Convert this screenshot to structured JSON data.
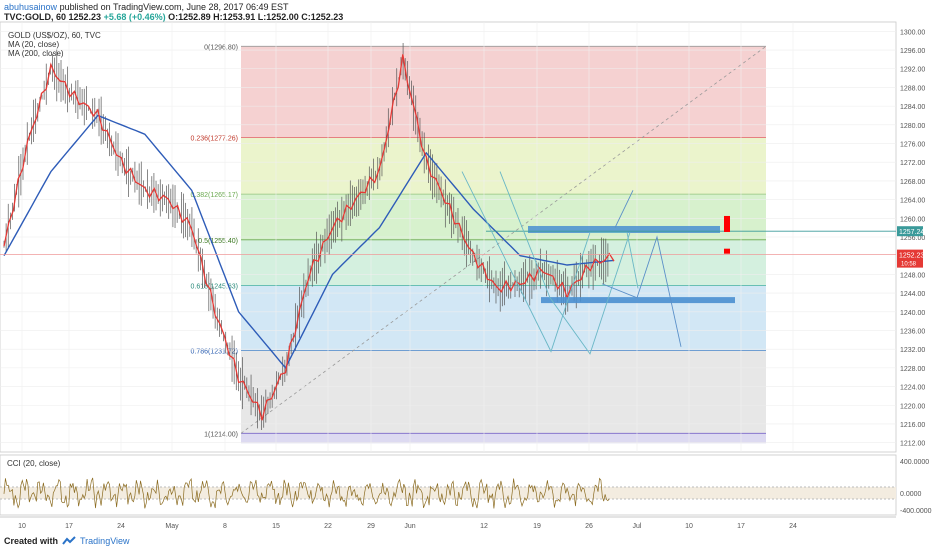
{
  "header": {
    "author": "abuhusainow",
    "published": "published on TradingView.com, June 28, 2017 06:49 EST",
    "symbol": "TVC:GOLD, 60",
    "price_label": "1252.23",
    "change": "+5.68 (+0.46%)",
    "ohlc": "O:1252.89 H:1253.91 L:1252.00 C:1252.23"
  },
  "legend": {
    "line1": "GOLD (US$/OZ), 60, TVC",
    "line2": "MA (20, close)",
    "line3": "MA (200, close)"
  },
  "cci_label": "CCI (20, close)",
  "footer": {
    "created": "Created with",
    "brand": "TradingView"
  },
  "colors": {
    "candles": "#555555",
    "ma20": "#e53935",
    "ma200": "#2e5cb8",
    "cci": "#8b6b20",
    "level_box": "#4a8fd0",
    "projection": "#6ab7c6",
    "alert": "#ff0000"
  },
  "chart_data": {
    "type": "line",
    "title": "",
    "xlabel": "",
    "ylabel": "",
    "ylim": [
      1210,
      1302
    ],
    "y_ticks": [
      "1300.00",
      "1296.00",
      "1292.00",
      "1288.00",
      "1284.00",
      "1280.00",
      "1276.00",
      "1272.00",
      "1268.00",
      "1264.00",
      "1260.00",
      "1256.00",
      "1248.00",
      "1244.00",
      "1240.00",
      "1236.00",
      "1232.00",
      "1228.00",
      "1224.00",
      "1220.00",
      "1216.00",
      "1212.00"
    ],
    "x_ticks": [
      "10",
      "17",
      "24",
      "May",
      "8",
      "15",
      "22",
      "29",
      "Jun",
      "12",
      "19",
      "26",
      "Jul",
      "10",
      "17",
      "24"
    ],
    "current_price_tag": "1252.23",
    "current_countdown": "10:58",
    "resistance_tag": "1257.24",
    "grid": true,
    "series": [
      {
        "name": "MA (20, close)",
        "x": [
          0,
          10,
          20,
          30,
          40,
          50,
          60,
          70,
          80,
          90,
          100,
          110,
          120,
          130,
          140,
          150,
          160,
          170,
          180,
          190,
          200,
          210,
          220,
          230,
          240,
          250,
          260
        ],
        "values": [
          1254,
          1276,
          1292,
          1286,
          1282,
          1272,
          1266,
          1264,
          1258,
          1240,
          1226,
          1218,
          1228,
          1248,
          1258,
          1264,
          1270,
          1294,
          1272,
          1262,
          1252,
          1245,
          1246,
          1249,
          1244,
          1250,
          1252
        ]
      },
      {
        "name": "MA (200, close)",
        "x": [
          0,
          20,
          40,
          60,
          80,
          100,
          120,
          140,
          160,
          180,
          200,
          220,
          240,
          260
        ],
        "values": [
          1252,
          1270,
          1282,
          1278,
          1266,
          1240,
          1228,
          1248,
          1258,
          1274,
          1262,
          1252,
          1250,
          1251
        ]
      }
    ],
    "fib_levels": [
      {
        "label": "0(1296.80)",
        "price": 1296.8,
        "band": "#f4cccc"
      },
      {
        "label": "0.236(1277.26)",
        "price": 1277.26,
        "band": "#e9f3c6"
      },
      {
        "label": "0.382(1265.17)",
        "price": 1265.17,
        "band": "#d3f0c8"
      },
      {
        "label": "0.5(1255.40)",
        "price": 1255.4,
        "band": "#cfeedb"
      },
      {
        "label": "0.618(1245.63)",
        "price": 1245.63,
        "band": "#cde4f4"
      },
      {
        "label": "0.786(1231.72)",
        "price": 1231.72,
        "band": "#e4e4e4"
      },
      {
        "label": "1(1214.00)",
        "price": 1214.0,
        "band": "#d9d6f0"
      }
    ],
    "cci": {
      "name": "CCI (20, close)",
      "y_ticks": [
        "400.0000",
        "0.0000",
        "-400.0000"
      ],
      "band": [
        100,
        -100
      ]
    }
  }
}
